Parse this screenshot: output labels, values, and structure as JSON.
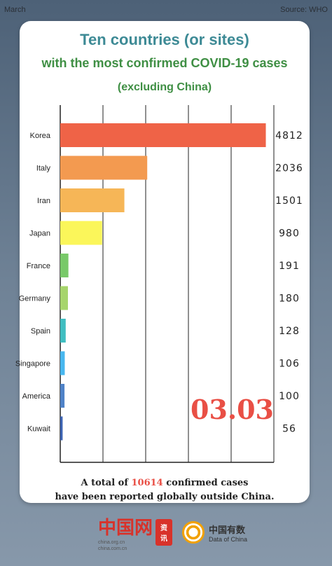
{
  "header": {
    "left": "March",
    "right": "Source: WHO"
  },
  "title": {
    "line1": "Ten countries (or sites)",
    "line2": "with the most confirmed COVID-19 cases",
    "line3": "(excluding China)"
  },
  "date_badge": "03.03",
  "footer": {
    "prefix": "A total of ",
    "total": "10614",
    "suffix": " confirmed cases",
    "line2": "have been reported globally outside China."
  },
  "logos": {
    "china_org": {
      "mark": "中国网",
      "sub1": "china.org.cn",
      "sub2": "china.com.cn",
      "box1": "资",
      "box2": "讯"
    },
    "data_of_china": {
      "name": "中国有数",
      "sub": "Data of China"
    }
  },
  "chart_data": {
    "type": "bar",
    "orientation": "horizontal",
    "categories": [
      "Korea",
      "Italy",
      "Iran",
      "Japan",
      "France",
      "Germany",
      "Spain",
      "Singapore",
      "America",
      "Kuwait"
    ],
    "values": [
      4812,
      2036,
      1501,
      980,
      191,
      180,
      128,
      106,
      100,
      56
    ],
    "colors": [
      "#ef6347",
      "#f39a50",
      "#f6b657",
      "#fbf65a",
      "#78c969",
      "#a7d56c",
      "#40bec1",
      "#48b7ef",
      "#4f82c7",
      "#3c63b2"
    ],
    "xlim": [
      0,
      5000
    ],
    "grid": true
  }
}
